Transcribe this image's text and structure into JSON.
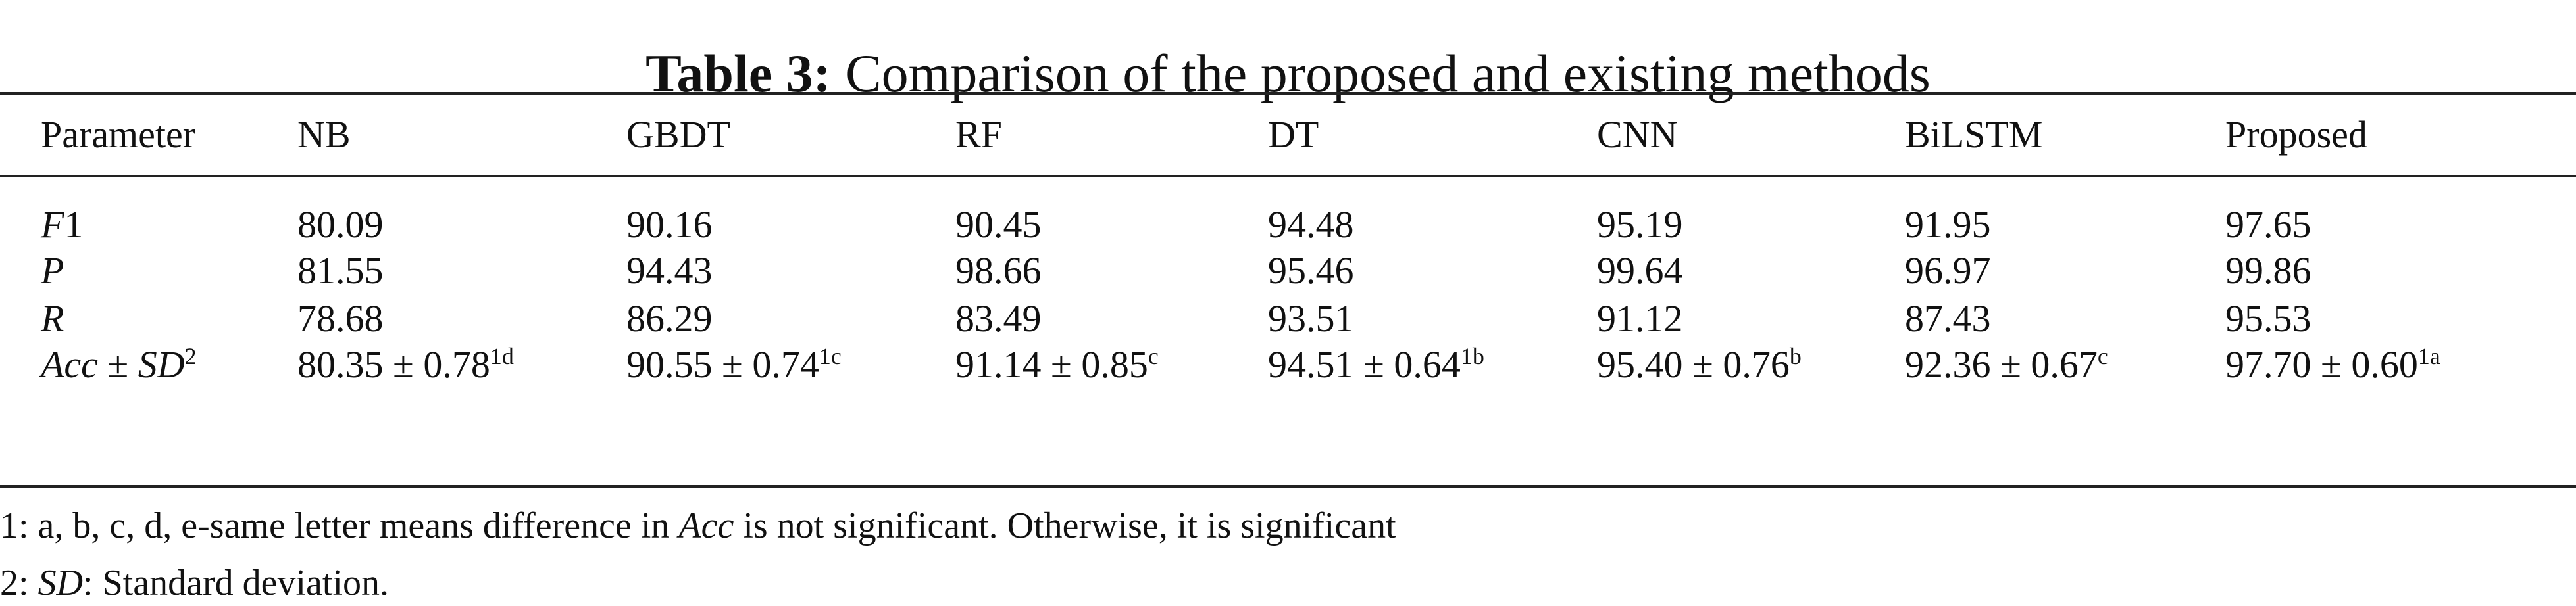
{
  "title": {
    "label": "Table 3:",
    "text": "Comparison of the proposed and existing methods"
  },
  "table": {
    "header": [
      "Parameter",
      "NB",
      "GBDT",
      "RF",
      "DT",
      "CNN",
      "BiLSTM",
      "Proposed"
    ],
    "rows": [
      {
        "label": [
          {
            "text": "F",
            "italic": true
          },
          {
            "text": "1"
          }
        ],
        "cells": [
          {
            "text": "80.09"
          },
          {
            "text": "90.16"
          },
          {
            "text": "90.45"
          },
          {
            "text": "94.48"
          },
          {
            "text": "95.19"
          },
          {
            "text": "91.95"
          },
          {
            "text": "97.65"
          }
        ]
      },
      {
        "label": [
          {
            "text": "P",
            "italic": true
          }
        ],
        "cells": [
          {
            "text": "81.55"
          },
          {
            "text": "94.43"
          },
          {
            "text": "98.66"
          },
          {
            "text": "95.46"
          },
          {
            "text": "99.64"
          },
          {
            "text": "96.97"
          },
          {
            "text": "99.86"
          }
        ]
      },
      {
        "label": [
          {
            "text": "R",
            "italic": true
          }
        ],
        "cells": [
          {
            "text": "78.68"
          },
          {
            "text": "86.29"
          },
          {
            "text": "83.49"
          },
          {
            "text": "93.51"
          },
          {
            "text": "91.12"
          },
          {
            "text": "87.43"
          },
          {
            "text": "95.53"
          }
        ]
      },
      {
        "label": [
          {
            "text": "Acc",
            "italic": true
          },
          {
            "text": " ± "
          },
          {
            "text": "SD",
            "italic": true
          },
          {
            "text": "2",
            "sup": true
          }
        ],
        "cells": [
          {
            "text": "80.35 ± 0.78",
            "sup": "1d"
          },
          {
            "text": "90.55 ± 0.74",
            "sup": "1c"
          },
          {
            "text": "91.14 ± 0.85",
            "sup": "c"
          },
          {
            "text": "94.51 ± 0.64",
            "sup": "1b"
          },
          {
            "text": "95.40 ± 0.76",
            "sup": "b"
          },
          {
            "text": "92.36 ± 0.67",
            "sup": "c"
          },
          {
            "text": "97.70 ± 0.60",
            "sup": "1a"
          }
        ]
      }
    ]
  },
  "notes": [
    [
      {
        "text": "1: a, b, c, d, e-same letter means difference in "
      },
      {
        "text": "Acc",
        "italic": true
      },
      {
        "text": " is not significant. Otherwise, it is significant"
      }
    ],
    [
      {
        "text": "2: "
      },
      {
        "text": "SD",
        "italic": true
      },
      {
        "text": ": Standard deviation."
      }
    ]
  ]
}
